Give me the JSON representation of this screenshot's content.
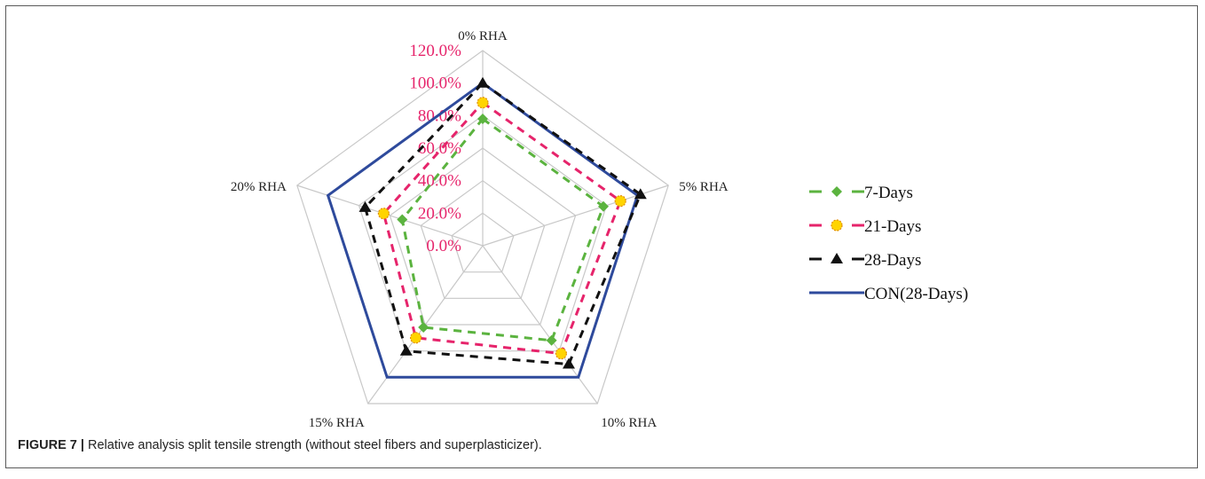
{
  "chart_data": {
    "type": "radar",
    "categories": [
      "0% RHA",
      "5% RHA",
      "10% RHA",
      "15% RHA",
      "20% RHA"
    ],
    "axis_ticks": [
      "0.0%",
      "20.0%",
      "40.0%",
      "60.0%",
      "80.0%",
      "100.0%",
      "120.0%"
    ],
    "rmax": 120,
    "series": [
      {
        "name": "7-Days",
        "values": [
          78,
          78,
          72,
          62,
          52
        ],
        "color": "#5bb33f",
        "style": "dashed",
        "marker": "diamond"
      },
      {
        "name": "21-Days",
        "values": [
          88,
          89,
          82,
          70,
          64
        ],
        "color": "#e6246b",
        "style": "dashed",
        "marker": "circle"
      },
      {
        "name": "28-Days",
        "values": [
          100,
          102,
          90,
          80,
          76
        ],
        "color": "#111111",
        "style": "dashed",
        "marker": "triangle"
      },
      {
        "name": "CON(28-Days)",
        "values": [
          100,
          100,
          100,
          100,
          100
        ],
        "color": "#2e4a9c",
        "style": "solid",
        "marker": "none"
      }
    ],
    "tick_color": "#e6246b",
    "grid_color": "#c8c8c8",
    "legend_position": "right"
  },
  "caption": {
    "label": "FIGURE 7 |",
    "text": " Relative analysis split tensile strength (without steel fibers and superplasticizer)."
  }
}
